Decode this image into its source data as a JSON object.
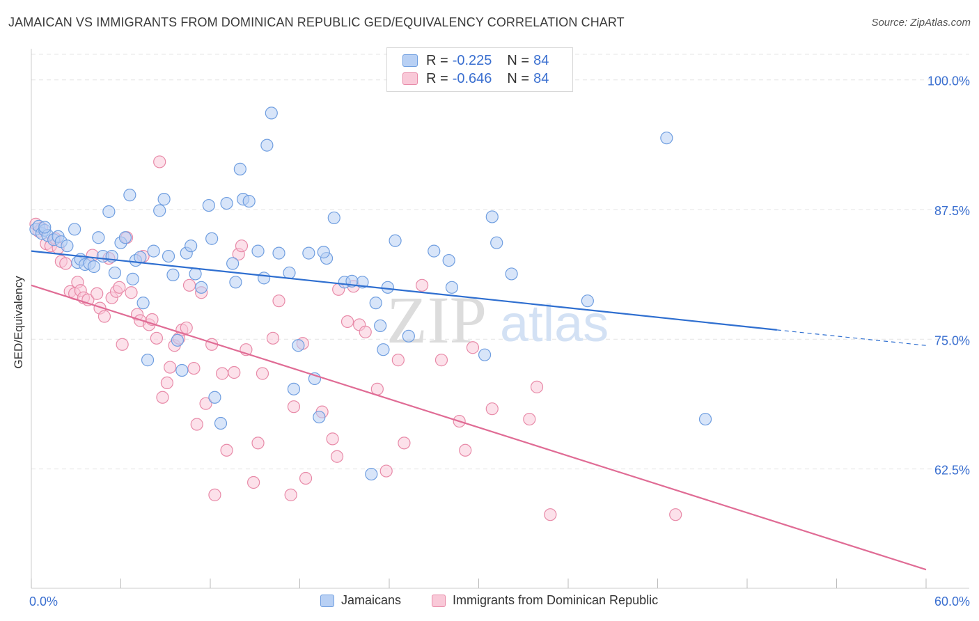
{
  "title": "JAMAICAN VS IMMIGRANTS FROM DOMINICAN REPUBLIC GED/EQUIVALENCY CORRELATION CHART",
  "source": "Source: ZipAtlas.com",
  "watermark": {
    "zip": "ZIP",
    "atlas": "atlas"
  },
  "legend_top": [
    {
      "r_label": "R =",
      "r_value": "-0.225",
      "n_label": "N =",
      "n_value": "84"
    },
    {
      "r_label": "R =",
      "r_value": "-0.646",
      "n_label": "N =",
      "n_value": "84"
    }
  ],
  "legend_bottom": [
    "Jamaicans",
    "Immigrants from Dominican Republic"
  ],
  "colors": {
    "blue_fill": "#b8d0f4",
    "blue_stroke": "#6f9ee0",
    "blue_line": "#2f6fd0",
    "pink_fill": "#f9c9d8",
    "pink_stroke": "#e88aa8",
    "pink_line": "#e06c95",
    "grid": "#e4e4e4",
    "axis_label": "#3a6fd0"
  },
  "chart_data": {
    "type": "scatter",
    "ylabel": "GED/Equivalency",
    "xlim": [
      0,
      60
    ],
    "ylim": [
      51,
      103
    ],
    "x_tick_labels": [
      "0.0%",
      "60.0%"
    ],
    "y_ticks": [
      {
        "value": 100,
        "label": "100.0%"
      },
      {
        "value": 87.5,
        "label": "87.5%"
      },
      {
        "value": 75,
        "label": "75.0%"
      },
      {
        "value": 62.5,
        "label": "62.5%"
      }
    ],
    "series": [
      {
        "name": "Jamaicans",
        "color": "blue",
        "points": [
          [
            0.3,
            85.6
          ],
          [
            0.5,
            85.9
          ],
          [
            0.7,
            85.2
          ],
          [
            0.9,
            85.5
          ],
          [
            1.1,
            85.0
          ],
          [
            1.5,
            84.6
          ],
          [
            1.8,
            84.9
          ],
          [
            2.0,
            84.4
          ],
          [
            2.4,
            84.0
          ],
          [
            2.9,
            85.6
          ],
          [
            3.1,
            82.4
          ],
          [
            3.3,
            82.7
          ],
          [
            3.6,
            82.2
          ],
          [
            3.9,
            82.3
          ],
          [
            4.2,
            82.0
          ],
          [
            4.5,
            84.8
          ],
          [
            4.8,
            83.0
          ],
          [
            5.2,
            87.3
          ],
          [
            5.4,
            83.0
          ],
          [
            5.6,
            81.4
          ],
          [
            6.0,
            84.3
          ],
          [
            6.3,
            84.8
          ],
          [
            6.6,
            88.9
          ],
          [
            6.8,
            80.8
          ],
          [
            7.0,
            82.6
          ],
          [
            7.3,
            82.9
          ],
          [
            7.5,
            78.5
          ],
          [
            7.8,
            73.0
          ],
          [
            8.2,
            83.5
          ],
          [
            8.6,
            87.4
          ],
          [
            8.9,
            88.5
          ],
          [
            9.2,
            83.0
          ],
          [
            9.5,
            81.2
          ],
          [
            9.8,
            74.9
          ],
          [
            10.1,
            72.0
          ],
          [
            10.4,
            83.3
          ],
          [
            10.7,
            84.0
          ],
          [
            11.0,
            81.3
          ],
          [
            11.4,
            80.0
          ],
          [
            11.9,
            87.9
          ],
          [
            12.1,
            84.7
          ],
          [
            12.3,
            69.4
          ],
          [
            12.7,
            66.9
          ],
          [
            13.1,
            88.1
          ],
          [
            13.5,
            82.3
          ],
          [
            13.7,
            80.5
          ],
          [
            14.0,
            91.4
          ],
          [
            14.2,
            88.5
          ],
          [
            14.6,
            88.3
          ],
          [
            15.2,
            83.5
          ],
          [
            15.6,
            80.9
          ],
          [
            15.8,
            93.7
          ],
          [
            16.1,
            96.8
          ],
          [
            16.6,
            83.3
          ],
          [
            17.3,
            81.4
          ],
          [
            17.6,
            70.2
          ],
          [
            17.9,
            74.4
          ],
          [
            18.6,
            83.3
          ],
          [
            19.0,
            71.2
          ],
          [
            19.3,
            67.5
          ],
          [
            19.8,
            82.8
          ],
          [
            20.3,
            86.7
          ],
          [
            21.0,
            80.5
          ],
          [
            22.2,
            80.5
          ],
          [
            22.8,
            62.0
          ],
          [
            23.1,
            78.5
          ],
          [
            23.4,
            76.3
          ],
          [
            23.6,
            74.0
          ],
          [
            23.9,
            80.0
          ],
          [
            24.4,
            84.5
          ],
          [
            25.3,
            75.3
          ],
          [
            27.0,
            83.5
          ],
          [
            28.0,
            82.6
          ],
          [
            28.2,
            80.0
          ],
          [
            30.4,
            73.5
          ],
          [
            30.9,
            86.8
          ],
          [
            31.2,
            84.3
          ],
          [
            32.2,
            81.3
          ],
          [
            37.3,
            78.7
          ],
          [
            42.6,
            94.4
          ],
          [
            45.2,
            67.3
          ],
          [
            0.9,
            85.8
          ],
          [
            21.5,
            80.6
          ],
          [
            19.6,
            83.4
          ]
        ]
      },
      {
        "name": "Immigrants from Dominican Republic",
        "color": "pink",
        "points": [
          [
            0.3,
            86.1
          ],
          [
            0.5,
            85.4
          ],
          [
            0.7,
            85.7
          ],
          [
            1.0,
            84.2
          ],
          [
            1.3,
            84.0
          ],
          [
            1.6,
            84.7
          ],
          [
            1.8,
            83.8
          ],
          [
            2.0,
            82.5
          ],
          [
            2.3,
            82.3
          ],
          [
            2.6,
            79.6
          ],
          [
            2.9,
            79.4
          ],
          [
            3.1,
            80.5
          ],
          [
            3.3,
            79.7
          ],
          [
            3.5,
            79.0
          ],
          [
            3.8,
            78.8
          ],
          [
            4.1,
            83.1
          ],
          [
            4.4,
            79.4
          ],
          [
            4.6,
            78.0
          ],
          [
            4.9,
            77.2
          ],
          [
            5.2,
            82.8
          ],
          [
            5.4,
            79.0
          ],
          [
            5.7,
            79.6
          ],
          [
            5.9,
            80.0
          ],
          [
            6.1,
            74.5
          ],
          [
            6.4,
            84.8
          ],
          [
            6.7,
            79.5
          ],
          [
            7.1,
            77.4
          ],
          [
            7.3,
            76.8
          ],
          [
            7.5,
            83.0
          ],
          [
            7.9,
            76.4
          ],
          [
            8.1,
            76.9
          ],
          [
            8.4,
            75.1
          ],
          [
            8.6,
            92.1
          ],
          [
            8.8,
            69.4
          ],
          [
            9.1,
            70.8
          ],
          [
            9.3,
            72.3
          ],
          [
            9.6,
            74.4
          ],
          [
            9.9,
            75.1
          ],
          [
            10.1,
            75.9
          ],
          [
            10.4,
            76.1
          ],
          [
            10.6,
            80.2
          ],
          [
            10.9,
            72.2
          ],
          [
            11.1,
            66.8
          ],
          [
            11.4,
            79.5
          ],
          [
            11.7,
            68.8
          ],
          [
            12.1,
            74.5
          ],
          [
            12.3,
            60.0
          ],
          [
            12.8,
            71.7
          ],
          [
            13.1,
            64.3
          ],
          [
            13.6,
            71.8
          ],
          [
            13.9,
            83.2
          ],
          [
            14.1,
            84.0
          ],
          [
            14.4,
            74.0
          ],
          [
            14.9,
            61.2
          ],
          [
            15.2,
            65.0
          ],
          [
            15.5,
            71.7
          ],
          [
            16.2,
            75.1
          ],
          [
            16.6,
            78.7
          ],
          [
            17.4,
            60.0
          ],
          [
            17.6,
            68.5
          ],
          [
            18.2,
            74.6
          ],
          [
            18.4,
            61.6
          ],
          [
            19.5,
            68.0
          ],
          [
            20.2,
            65.4
          ],
          [
            20.5,
            63.7
          ],
          [
            20.6,
            79.8
          ],
          [
            21.2,
            76.7
          ],
          [
            21.6,
            80.1
          ],
          [
            22.0,
            76.4
          ],
          [
            22.4,
            75.7
          ],
          [
            23.2,
            70.2
          ],
          [
            23.8,
            62.3
          ],
          [
            24.6,
            73.0
          ],
          [
            25.0,
            65.0
          ],
          [
            26.2,
            80.2
          ],
          [
            27.5,
            73.0
          ],
          [
            28.7,
            67.1
          ],
          [
            29.1,
            64.3
          ],
          [
            29.6,
            74.2
          ],
          [
            30.9,
            68.3
          ],
          [
            33.4,
            67.3
          ],
          [
            33.9,
            70.4
          ],
          [
            34.8,
            58.1
          ],
          [
            43.2,
            58.1
          ]
        ]
      }
    ],
    "trend_lines": [
      {
        "series": "Jamaicans",
        "x0": 0,
        "y0": 83.5,
        "x1": 50,
        "y1": 75.9,
        "dash_x1": 60,
        "dash_y1": 74.4
      },
      {
        "series": "Immigrants from Dominican Republic",
        "x0": 0,
        "y0": 80.2,
        "x1": 60,
        "y1": 52.8
      }
    ]
  }
}
